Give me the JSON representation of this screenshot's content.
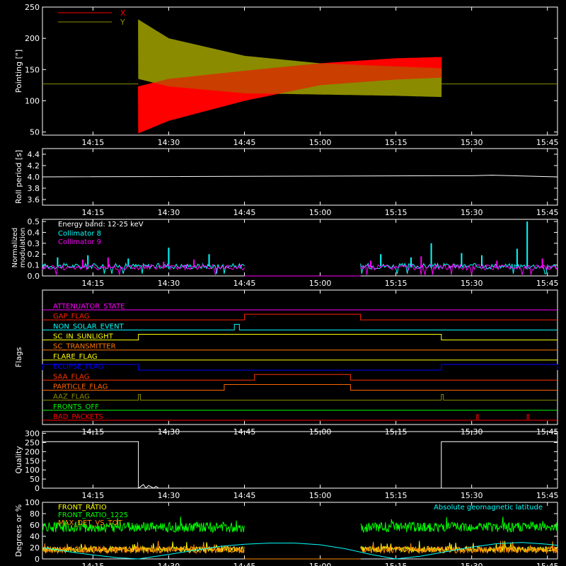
{
  "chart_data": [
    {
      "type": "line",
      "ylabel": "Pointing [\"]",
      "ylim": [
        45,
        250
      ],
      "yticks": [
        50,
        100,
        150,
        200,
        250
      ],
      "xlim": [
        "14:05",
        "15:47"
      ],
      "xticks": [
        "14:15",
        "14:30",
        "14:45",
        "15:00",
        "15:15",
        "15:30",
        "15:45"
      ],
      "legend": "top-left",
      "series": [
        {
          "name": "X",
          "color": "#ff0000",
          "baseline": 127,
          "active_start": "14:24",
          "active_end": "15:24",
          "envelope_time": [
            "14:24",
            "14:30",
            "14:45",
            "15:00",
            "15:15",
            "15:24"
          ],
          "envelope_low": [
            48,
            68,
            100,
            125,
            134,
            137
          ],
          "envelope_high": [
            123,
            135,
            148,
            160,
            168,
            170
          ]
        },
        {
          "name": "Y",
          "color": "#8b8b00",
          "baseline": 127,
          "active_start": "14:24",
          "active_end": "15:24",
          "envelope_time": [
            "14:24",
            "14:30",
            "14:45",
            "15:00",
            "15:15",
            "15:24"
          ],
          "envelope_low": [
            135,
            123,
            112,
            110,
            108,
            106
          ],
          "envelope_high": [
            230,
            200,
            172,
            160,
            155,
            152
          ]
        }
      ]
    },
    {
      "type": "line",
      "ylabel": "Roll period [s]",
      "ylim": [
        3.5,
        4.5
      ],
      "yticks": [
        "3.6",
        "3.8",
        "4.0",
        "4.2",
        "4.4"
      ],
      "xticks": [
        "14:15",
        "14:30",
        "14:45",
        "15:00",
        "15:15",
        "15:30",
        "15:45"
      ],
      "series": [
        {
          "color": "#ffffff",
          "x": [
            "14:05",
            "15:24",
            "15:30",
            "15:34",
            "15:47"
          ],
          "y": [
            4.0,
            4.02,
            4.02,
            4.03,
            4.0
          ]
        }
      ]
    },
    {
      "type": "line",
      "ylabel_lines": [
        "Normalized",
        "modulation"
      ],
      "ylim": [
        0,
        0.52
      ],
      "yticks": [
        "0.0",
        "0.1",
        "0.2",
        "0.3",
        "0.4",
        "0.5"
      ],
      "xticks": [
        "14:15",
        "14:30",
        "14:45",
        "15:00",
        "15:15",
        "15:30",
        "15:45"
      ],
      "annotations": [
        "Energy band: 12-25 keV"
      ],
      "series": [
        {
          "name": "Collimator 8",
          "color": "#00ffff",
          "segments": [
            [
              "14:05",
              "14:45"
            ],
            [
              "15:08",
              "15:47"
            ]
          ],
          "base": 0.09,
          "spikes_x": [
            "14:08",
            "14:14",
            "14:22",
            "14:30",
            "14:38",
            "15:12",
            "15:18",
            "15:22",
            "15:28",
            "15:32",
            "15:39",
            "15:41"
          ],
          "spikes_y": [
            0.17,
            0.19,
            0.16,
            0.26,
            0.2,
            0.2,
            0.17,
            0.3,
            0.21,
            0.19,
            0.25,
            0.5
          ]
        },
        {
          "name": "Collimator 9",
          "color": "#ff00ff",
          "segments": [
            [
              "14:05",
              "14:45"
            ],
            [
              "15:08",
              "15:47"
            ]
          ],
          "base": 0.08,
          "level_between": [
            "14:45",
            "15:08"
          ],
          "level_value": 0.0,
          "spikes_x": [
            "14:13",
            "14:18",
            "14:29",
            "14:35",
            "15:10",
            "15:20",
            "15:35",
            "15:44"
          ],
          "spikes_y": [
            0.15,
            0.17,
            0.13,
            0.15,
            0.14,
            0.18,
            0.14,
            0.16
          ]
        }
      ]
    },
    {
      "type": "line",
      "ylabel": "Flags",
      "xticks": [
        "14:15",
        "14:30",
        "14:45",
        "15:00",
        "15:15",
        "15:30",
        "15:45"
      ],
      "flags": [
        {
          "name": "ATTENUATOR_STATE",
          "color": "#ff00ff",
          "on": []
        },
        {
          "name": "GAP_FLAG",
          "color": "#ff2200",
          "on": [
            [
              "14:45",
              "15:08"
            ]
          ]
        },
        {
          "name": "NON_SOLAR_EVENT",
          "color": "#00ffff",
          "on": [
            [
              "14:43",
              "14:44"
            ]
          ]
        },
        {
          "name": "SC_IN_SUNLIGHT",
          "color": "#ffff00",
          "on": [
            [
              "14:24",
              "15:24"
            ]
          ]
        },
        {
          "name": "SC_TRANSMITTER",
          "color": "#ff7700",
          "on": []
        },
        {
          "name": "FLARE_FLAG",
          "color": "#ffff00",
          "on": []
        },
        {
          "name": "ECLIPSE_FLAG",
          "color": "#0000ff",
          "on": [
            [
              "14:05",
              "14:24"
            ],
            [
              "15:24",
              "15:47"
            ]
          ]
        },
        {
          "name": "SAA_FLAG",
          "color": "#ff3300",
          "on": [
            [
              "14:47",
              "15:06"
            ]
          ]
        },
        {
          "name": "PARTICLE_FLAG",
          "color": "#ff6600",
          "on": [
            [
              "14:41",
              "15:06"
            ]
          ]
        },
        {
          "name": "AAZ_FLAG",
          "color": "#8b8b00",
          "on": [
            [
              "14:24",
              "14:24.4"
            ],
            [
              "15:24",
              "15:24.4"
            ]
          ]
        },
        {
          "name": "FRONTS_OFF",
          "color": "#00ff00",
          "on": []
        },
        {
          "name": "BAD_PACKETS",
          "color": "#ff0000",
          "on": [
            [
              "15:31",
              "15:31.3"
            ],
            [
              "15:41",
              "15:41.3"
            ]
          ]
        }
      ]
    },
    {
      "type": "line",
      "ylabel": "Quality",
      "ylim": [
        0,
        310
      ],
      "yticks": [
        0,
        50,
        100,
        150,
        200,
        250,
        300
      ],
      "xticks": [
        "14:15",
        "14:30",
        "14:45",
        "15:00",
        "15:15",
        "15:30",
        "15:45"
      ],
      "series": [
        {
          "color": "#ffffff",
          "x": [
            "14:05",
            "14:24",
            "14:24",
            "14:25",
            "14:25.5",
            "14:26",
            "14:27",
            "14:27.5",
            "14:28",
            "15:24",
            "15:24",
            "15:47"
          ],
          "y": [
            255,
            255,
            0,
            20,
            0,
            15,
            0,
            10,
            0,
            0,
            255,
            255
          ]
        }
      ]
    },
    {
      "type": "line",
      "ylabel": "Degrees or %",
      "ylim": [
        0,
        100
      ],
      "yticks": [
        0,
        20,
        40,
        60,
        80,
        100
      ],
      "xticks": [
        "14:15",
        "14:30",
        "14:45",
        "15:00",
        "15:15",
        "15:30",
        "15:45"
      ],
      "series": [
        {
          "name": "FRONT_RATIO",
          "color": "#ffff00",
          "segments": [
            [
              "14:05",
              "14:45"
            ],
            [
              "15:08",
              "15:47"
            ]
          ],
          "base": 17
        },
        {
          "name": "FRONT_RATIO_1225",
          "color": "#00ff00",
          "segments": [
            [
              "14:05",
              "14:45"
            ],
            [
              "15:08",
              "15:47"
            ]
          ],
          "base": 56
        },
        {
          "name": "MAX_DET_VS_TOT",
          "color": "#ff8c00",
          "segments": [
            [
              "14:05",
              "14:45"
            ],
            [
              "15:08",
              "15:47"
            ]
          ],
          "base": 16
        },
        {
          "name": "Absolute geomagnetic latitude",
          "color": "#00ffff",
          "x": [
            "14:05",
            "14:10",
            "14:15",
            "14:20",
            "14:24",
            "14:30",
            "14:35",
            "14:40",
            "14:45",
            "14:50",
            "14:55",
            "15:00",
            "15:05",
            "15:10",
            "15:15",
            "15:20",
            "15:25",
            "15:30",
            "15:35",
            "15:40",
            "15:45",
            "15:47"
          ],
          "y": [
            20,
            13,
            7,
            2,
            0,
            8,
            15,
            22,
            26,
            28,
            28,
            25,
            18,
            8,
            0,
            5,
            13,
            21,
            27,
            29,
            26,
            24
          ]
        }
      ]
    }
  ]
}
